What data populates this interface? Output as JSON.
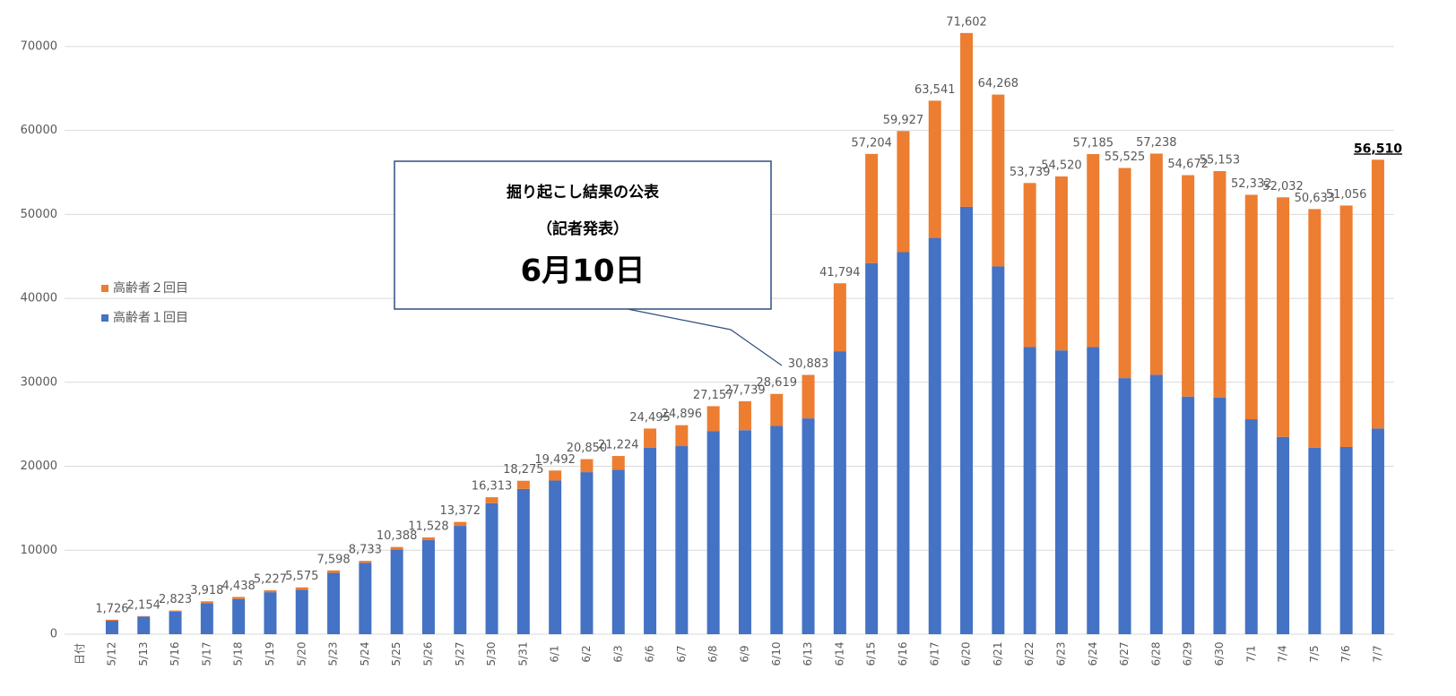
{
  "chart_data": {
    "type": "stacked_bar",
    "categories": [
      "日付",
      "5/12",
      "5/13",
      "5/16",
      "5/17",
      "5/18",
      "5/19",
      "5/20",
      "5/23",
      "5/24",
      "5/25",
      "5/26",
      "5/27",
      "5/30",
      "5/31",
      "6/1",
      "6/2",
      "6/3",
      "6/6",
      "6/7",
      "6/8",
      "6/9",
      "6/10",
      "6/13",
      "6/14",
      "6/15",
      "6/16",
      "6/17",
      "6/20",
      "6/21",
      "6/22",
      "6/23",
      "6/24",
      "6/27",
      "6/28",
      "6/29",
      "6/30",
      "7/1",
      "7/4",
      "7/5",
      "7/6",
      "7/7"
    ],
    "series": [
      {
        "name": "高齢者１回目",
        "color": "#4472c4",
        "values": [
          null,
          1600,
          2100,
          2700,
          3700,
          4200,
          5000,
          5300,
          7300,
          8500,
          10100,
          11200,
          12900,
          15600,
          17300,
          18300,
          19300,
          19600,
          22200,
          22400,
          24200,
          24300,
          24800,
          25700,
          33700,
          44200,
          45500,
          47200,
          50900,
          43800,
          34200,
          33800,
          34200,
          30500,
          30900,
          28300,
          28200,
          25600,
          23500,
          22200,
          22300,
          24500
        ]
      },
      {
        "name": "高齢者２回目",
        "color": "#ed7d31",
        "values": [
          null,
          126,
          54,
          123,
          218,
          238,
          227,
          275,
          298,
          233,
          288,
          328,
          472,
          713,
          975,
          1192,
          1550,
          1624,
          2295,
          2496,
          2957,
          3439,
          3819,
          5183,
          8094,
          13004,
          14427,
          16341,
          20702,
          20468,
          19539,
          20720,
          22985,
          25025,
          26338,
          26372,
          26953,
          26732,
          28532,
          28433,
          28756,
          32010
        ]
      }
    ],
    "totals": {
      "values": [
        null,
        1726,
        2154,
        2823,
        3918,
        4438,
        5227,
        5575,
        7598,
        8733,
        10388,
        11528,
        13372,
        16313,
        18275,
        19492,
        20850,
        21224,
        24495,
        24896,
        27157,
        27739,
        28619,
        30883,
        41794,
        57204,
        59927,
        63541,
        71602,
        64268,
        53739,
        54520,
        57185,
        55525,
        57238,
        54672,
        55153,
        52332,
        52032,
        50633,
        51056,
        56510
      ],
      "value_labels": [
        null,
        "1,726",
        "2,154",
        "2,823",
        "3,918",
        "4,438",
        "5,227",
        "5,575",
        "7,598",
        "8,733",
        "10,388",
        "11,528",
        "13,372",
        "16,313",
        "18,275",
        "19,492",
        "20,850",
        "21,224",
        "24,495",
        "24,896",
        "27,157",
        "27,739",
        "28,619",
        "30,883",
        "41,794",
        "57,204",
        "59,927",
        "63,541",
        "71,602",
        "64,268",
        "53,739",
        "54,520",
        "57,185",
        "55,525",
        "57,238",
        "54,672",
        "55,153",
        "52,332",
        "52,032",
        "50,633",
        "51,056",
        "56,510"
      ]
    },
    "annotation": {
      "lines": [
        "掘り起こし結果の公表",
        "（記者発表）",
        "6月10日"
      ]
    },
    "ylim": [
      0,
      75000
    ],
    "yticks": [
      0,
      10000,
      20000,
      30000,
      40000,
      50000,
      60000,
      70000
    ],
    "grid": true
  }
}
